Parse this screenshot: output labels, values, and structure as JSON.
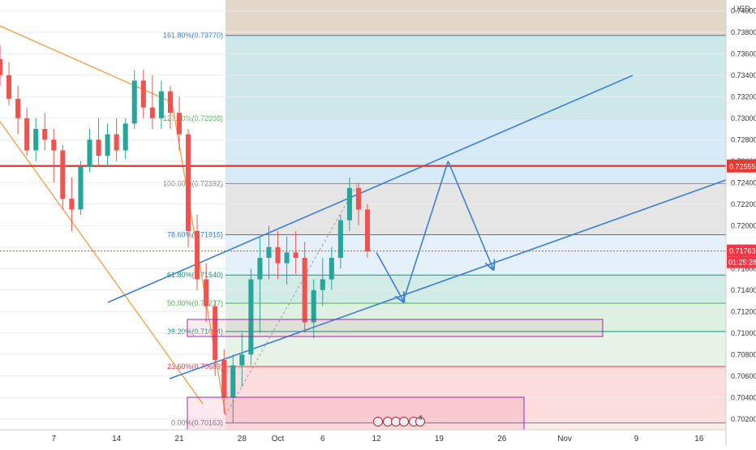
{
  "chart_data": {
    "type": "candlestick",
    "currency_label": "USD",
    "y_range": [
      0.701,
      0.741
    ],
    "x_range": [
      1,
      82
    ],
    "y_ticks": [
      0.702,
      0.704,
      0.706,
      0.708,
      0.71,
      0.712,
      0.714,
      0.716,
      0.718,
      0.72,
      0.722,
      0.724,
      0.726,
      0.728,
      0.73,
      0.732,
      0.734,
      0.736,
      0.738,
      0.74
    ],
    "x_ticks": [
      {
        "label": "7",
        "x": 7
      },
      {
        "label": "14",
        "x": 14
      },
      {
        "label": "21",
        "x": 21
      },
      {
        "label": "28",
        "x": 28
      },
      {
        "label": "Oct",
        "x": 32
      },
      {
        "label": "6",
        "x": 37
      },
      {
        "label": "12",
        "x": 43
      },
      {
        "label": "19",
        "x": 50
      },
      {
        "label": "26",
        "x": 57
      },
      {
        "label": "Nov",
        "x": 64
      },
      {
        "label": "9",
        "x": 72
      },
      {
        "label": "16",
        "x": 79
      }
    ],
    "ohlc": [
      [
        1,
        0.7355,
        0.7368,
        0.733,
        0.734
      ],
      [
        2,
        0.734,
        0.7352,
        0.7312,
        0.7318
      ],
      [
        3,
        0.7318,
        0.733,
        0.7285,
        0.73
      ],
      [
        4,
        0.73,
        0.731,
        0.7265,
        0.727
      ],
      [
        5,
        0.727,
        0.73,
        0.726,
        0.729
      ],
      [
        6,
        0.729,
        0.7305,
        0.727,
        0.728
      ],
      [
        7,
        0.728,
        0.729,
        0.724,
        0.727
      ],
      [
        8,
        0.727,
        0.7275,
        0.7215,
        0.7225
      ],
      [
        9,
        0.7225,
        0.7245,
        0.7195,
        0.7215
      ],
      [
        10,
        0.7215,
        0.726,
        0.721,
        0.7255
      ],
      [
        11,
        0.7255,
        0.729,
        0.725,
        0.728
      ],
      [
        12,
        0.728,
        0.73,
        0.7255,
        0.7265
      ],
      [
        13,
        0.7265,
        0.7295,
        0.7255,
        0.7285
      ],
      [
        14,
        0.7285,
        0.73,
        0.726,
        0.727
      ],
      [
        15,
        0.727,
        0.73,
        0.7262,
        0.7295
      ],
      [
        16,
        0.7295,
        0.7345,
        0.729,
        0.7335
      ],
      [
        17,
        0.7335,
        0.7345,
        0.73,
        0.731
      ],
      [
        18,
        0.731,
        0.734,
        0.729,
        0.73
      ],
      [
        19,
        0.73,
        0.7335,
        0.729,
        0.7325
      ],
      [
        20,
        0.7325,
        0.733,
        0.729,
        0.7305
      ],
      [
        21,
        0.7305,
        0.732,
        0.727,
        0.7285
      ],
      [
        22,
        0.7285,
        0.729,
        0.718,
        0.7195
      ],
      [
        23,
        0.7195,
        0.721,
        0.714,
        0.715
      ],
      [
        24,
        0.715,
        0.7165,
        0.711,
        0.7125
      ],
      [
        25,
        0.7125,
        0.713,
        0.706,
        0.7075
      ],
      [
        26,
        0.7075,
        0.7085,
        0.7025,
        0.704
      ],
      [
        27,
        0.704,
        0.708,
        0.7016,
        0.707
      ],
      [
        28,
        0.707,
        0.71,
        0.705,
        0.708
      ],
      [
        29,
        0.708,
        0.716,
        0.707,
        0.715
      ],
      [
        30,
        0.715,
        0.719,
        0.71,
        0.717
      ],
      [
        31,
        0.717,
        0.72,
        0.715,
        0.718
      ],
      [
        32,
        0.718,
        0.7195,
        0.715,
        0.7165
      ],
      [
        33,
        0.7165,
        0.719,
        0.7145,
        0.7175
      ],
      [
        34,
        0.7175,
        0.7195,
        0.7155,
        0.717
      ],
      [
        35,
        0.717,
        0.7185,
        0.71,
        0.711
      ],
      [
        36,
        0.711,
        0.715,
        0.7095,
        0.714
      ],
      [
        37,
        0.714,
        0.717,
        0.7125,
        0.715
      ],
      [
        38,
        0.715,
        0.718,
        0.714,
        0.717
      ],
      [
        39,
        0.717,
        0.721,
        0.716,
        0.7205
      ],
      [
        40,
        0.7205,
        0.7245,
        0.7195,
        0.7235
      ],
      [
        41,
        0.7235,
        0.724,
        0.72,
        0.7215
      ],
      [
        42,
        0.7215,
        0.722,
        0.717,
        0.7176
      ]
    ],
    "fibonacci_levels": [
      {
        "label": "161.80%(0.73770)",
        "value": 0.7377,
        "color": "#2f7fd0"
      },
      {
        "label": "127.20%(0.72998)",
        "value": 0.72998,
        "color": "#4caf50"
      },
      {
        "label": "100.00%(0.72392)",
        "value": 0.72392,
        "color": "#787b86"
      },
      {
        "label": "78.60%(0.71915)",
        "value": 0.71915,
        "color": "#2f7fd0"
      },
      {
        "label": "61.80%(0.71540)",
        "value": 0.7154,
        "color": "#089981"
      },
      {
        "label": "50.00%(0.71277)",
        "value": 0.71277,
        "color": "#4caf50"
      },
      {
        "label": "38.20%(0.71014)",
        "value": 0.71014,
        "color": "#089981"
      },
      {
        "label": "23.60%(0.70689)",
        "value": 0.70689,
        "color": "#f23645"
      },
      {
        "label": "0.00%(0.70163)",
        "value": 0.70163,
        "color": "#787b86"
      }
    ],
    "horizontal_line": {
      "value": 0.72555,
      "label": "0.72555",
      "color": "#e53935"
    },
    "last_price": {
      "value": 0.71763,
      "label": "0.71763",
      "countdown": "01:25:28",
      "color": "#f23645"
    },
    "projection_path": [
      {
        "x": 43,
        "y": 0.7175
      },
      {
        "x": 46,
        "y": 0.713
      },
      {
        "x": 51,
        "y": 0.726
      },
      {
        "x": 56,
        "y": 0.716
      }
    ],
    "events_label": "4"
  }
}
